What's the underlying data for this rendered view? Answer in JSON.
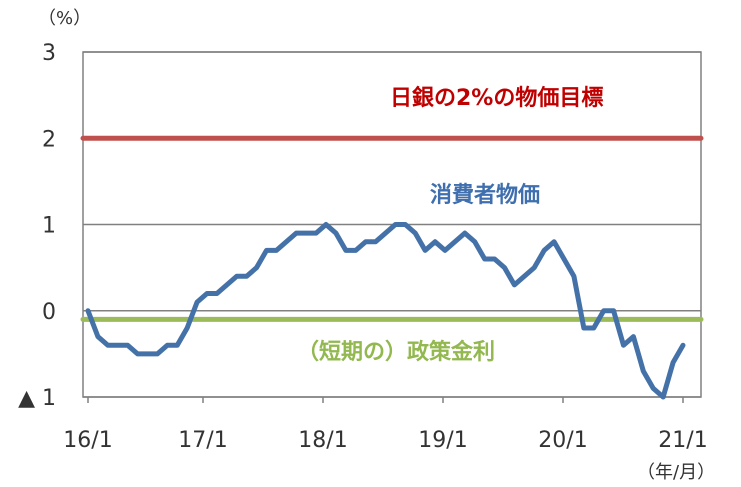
{
  "chart_data": {
    "type": "line",
    "y_unit_label": "（%）",
    "x_unit_label": "（年/月）",
    "ylim": [
      -1,
      3
    ],
    "y_ticks": [
      3,
      2,
      1,
      0,
      -1
    ],
    "y_tick_labels": [
      "3",
      "2",
      "1",
      "0",
      "▲ 1"
    ],
    "grid": true,
    "x_ticks": [
      0,
      12,
      24,
      36,
      48,
      60
    ],
    "x_tick_labels": [
      "16/1",
      "17/1",
      "18/1",
      "19/1",
      "20/1",
      "21/1"
    ],
    "series": [
      {
        "name": "消費者物価",
        "color": "#4472a8",
        "x": [
          0,
          1,
          2,
          3,
          4,
          5,
          6,
          7,
          8,
          9,
          10,
          11,
          12,
          13,
          14,
          15,
          16,
          17,
          18,
          19,
          20,
          21,
          22,
          23,
          24,
          25,
          26,
          27,
          28,
          29,
          30,
          31,
          32,
          33,
          34,
          35,
          36,
          37,
          38,
          39,
          40,
          41,
          42,
          43,
          44,
          45,
          46,
          47,
          48,
          49,
          50,
          51,
          52,
          53,
          54,
          55,
          56,
          57,
          58,
          59,
          60
        ],
        "values": [
          0,
          -0.3,
          -0.4,
          -0.4,
          -0.4,
          -0.5,
          -0.5,
          -0.5,
          -0.4,
          -0.4,
          -0.2,
          0.1,
          0.2,
          0.2,
          0.3,
          0.4,
          0.4,
          0.5,
          0.7,
          0.7,
          0.8,
          0.9,
          0.9,
          0.9,
          1.0,
          0.9,
          0.7,
          0.7,
          0.8,
          0.8,
          0.9,
          1.0,
          1.0,
          0.9,
          0.7,
          0.8,
          0.7,
          0.8,
          0.9,
          0.8,
          0.6,
          0.6,
          0.5,
          0.3,
          0.4,
          0.5,
          0.7,
          0.8,
          0.6,
          0.4,
          -0.2,
          -0.2,
          0,
          0,
          -0.4,
          -0.3,
          -0.7,
          -0.9,
          -1.0,
          -0.6,
          -0.4
        ]
      },
      {
        "name": "日銀の2%の物価目標",
        "color": "#c0504d",
        "x": [
          0,
          60
        ],
        "values": [
          2,
          2
        ]
      },
      {
        "name": "（短期の）政策金利",
        "color": "#9bbb59",
        "x": [
          0,
          60
        ],
        "values": [
          -0.1,
          -0.1
        ]
      }
    ],
    "annotations": {
      "target": {
        "text": "日銀の2%の物価目標",
        "color": "#c00000"
      },
      "cpi": {
        "text": "消費者物価",
        "color": "#3f6fae"
      },
      "policy": {
        "text": "（短期の）政策金利",
        "color": "#92b84f"
      }
    }
  }
}
